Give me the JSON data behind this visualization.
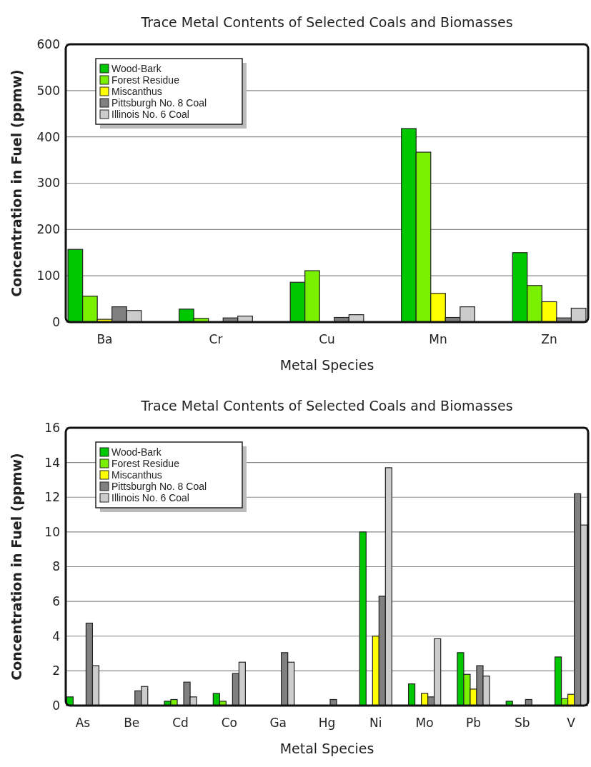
{
  "chart_data": [
    {
      "type": "bar",
      "title": "Trace Metal Contents of Selected Coals and Biomasses",
      "xlabel": "Metal Species",
      "ylabel": "Concentration in Fuel (ppmw)",
      "categories": [
        "Ba",
        "Cr",
        "Cu",
        "Mn",
        "Zn"
      ],
      "ylim": [
        0,
        600
      ],
      "yticks": [
        0,
        100,
        200,
        300,
        400,
        500,
        600
      ],
      "grid": "y",
      "legend": "top left",
      "series": [
        {
          "name": "Wood-Bark",
          "color": "#00c800",
          "values": [
            157,
            28,
            86,
            418,
            150
          ]
        },
        {
          "name": "Forest Residue",
          "color": "#78f000",
          "values": [
            56,
            8,
            111,
            367,
            79
          ]
        },
        {
          "name": "Miscanthus",
          "color": "#ffff00",
          "values": [
            6,
            null,
            null,
            62,
            44
          ]
        },
        {
          "name": "Pittsburgh No. 8 Coal",
          "color": "#808080",
          "values": [
            33,
            9,
            10,
            10,
            9
          ]
        },
        {
          "name": "Illinois No. 6 Coal",
          "color": "#cccccc",
          "values": [
            25,
            13,
            16,
            33,
            30
          ]
        }
      ]
    },
    {
      "type": "bar",
      "title": "Trace Metal Contents of Selected Coals and Biomasses",
      "xlabel": "Metal Species",
      "ylabel": "Concentration in Fuel (ppmw)",
      "categories": [
        "As",
        "Be",
        "Cd",
        "Co",
        "Ga",
        "Hg",
        "Ni",
        "Mo",
        "Pb",
        "Sb",
        "V"
      ],
      "ylim": [
        0,
        16
      ],
      "yticks": [
        0,
        2,
        4,
        6,
        8,
        10,
        12,
        14,
        16
      ],
      "grid": "y",
      "legend": "top left",
      "series": [
        {
          "name": "Wood-Bark",
          "color": "#00c800",
          "values": [
            0.5,
            null,
            0.25,
            0.7,
            null,
            null,
            10,
            1.25,
            3.05,
            0.25,
            2.8
          ]
        },
        {
          "name": "Forest Residue",
          "color": "#78f000",
          "values": [
            null,
            null,
            0.35,
            0.25,
            null,
            null,
            null,
            null,
            1.8,
            null,
            0.4
          ]
        },
        {
          "name": "Miscanthus",
          "color": "#ffff00",
          "values": [
            null,
            null,
            null,
            null,
            null,
            null,
            4,
            0.7,
            0.95,
            null,
            0.65
          ]
        },
        {
          "name": "Pittsburgh No. 8 Coal",
          "color": "#808080",
          "values": [
            4.75,
            0.85,
            1.35,
            1.85,
            3.05,
            0.35,
            6.3,
            0.5,
            2.3,
            0.35,
            12.2
          ]
        },
        {
          "name": "Illinois No. 6 Coal",
          "color": "#cccccc",
          "values": [
            2.3,
            1.1,
            0.5,
            2.5,
            2.5,
            null,
            13.7,
            3.85,
            1.7,
            null,
            10.4
          ]
        }
      ]
    }
  ]
}
